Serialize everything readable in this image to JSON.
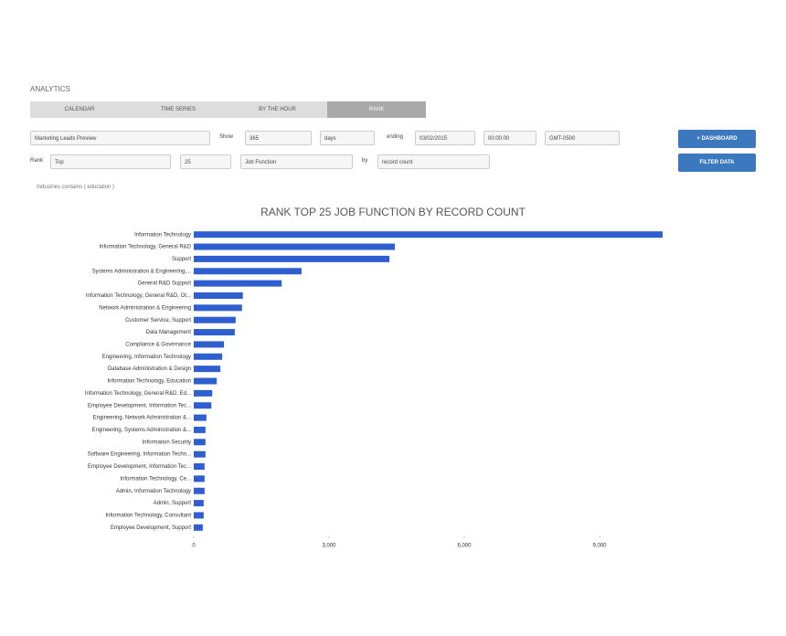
{
  "header": {
    "title": "ANALYTICS"
  },
  "tabs": [
    "CALENDAR",
    "TIME SERIES",
    "BY THE HOUR",
    "RANK"
  ],
  "controls": {
    "dataset": "Marketing Leads Preview",
    "show_label": "Show",
    "show_value": "365",
    "unit": "days",
    "ending_label": "ending",
    "date": "03/02/2015",
    "time": "00:00:00",
    "timezone": "GMT-0500",
    "rank_label": "Rank",
    "rank_order": "Top",
    "rank_count": "25",
    "field": "Job Function",
    "by_label": "by",
    "metric": "record count"
  },
  "buttons": [
    "+ DASHBOARD",
    "FILTER DATA"
  ],
  "filter": "Industries contains ( education )",
  "chart_data": {
    "type": "bar",
    "orientation": "horizontal",
    "title": "RANK TOP 25 JOB FUNCTION BY RECORD COUNT",
    "categories": [
      "Information Technology",
      "Information Technology, General R&D",
      "Support",
      "Systems Administration & Engineering,...",
      "General R&D Support",
      "Information Technology, General R&D, Ot...",
      "Network Administration & Engineering",
      "Customer Service, Support",
      "Data Management",
      "Compliance & Governance",
      "Engineering, Information Technology",
      "Database Administration & Design",
      "Information Technology, Education",
      "Information Technology, General R&D, Ed...",
      "Employee Development, Information Tec...",
      "Engineering, Network Administration &...",
      "Engineering, Systems Administration &...",
      "Information Security",
      "Software Engineering, Information Techn...",
      "Employee Development, Information Tec...",
      "Information Technology, Ce...",
      "Admin, Information Technology",
      "Admin, Support",
      "Information Technology, Consultant",
      "Employee Development, Support"
    ],
    "values": [
      10400,
      4460,
      4340,
      2390,
      1950,
      1090,
      1070,
      930,
      910,
      670,
      630,
      590,
      510,
      410,
      390,
      280,
      260,
      260,
      260,
      240,
      240,
      240,
      220,
      220,
      200
    ],
    "color": "#2f5fcf",
    "xlim": [
      0,
      10500
    ],
    "xticks": [
      0,
      {
        "value": 3000,
        "label": "3,000"
      },
      {
        "value": 6000,
        "label": "6,000"
      },
      {
        "value": 9000,
        "label": "9,000"
      }
    ]
  }
}
